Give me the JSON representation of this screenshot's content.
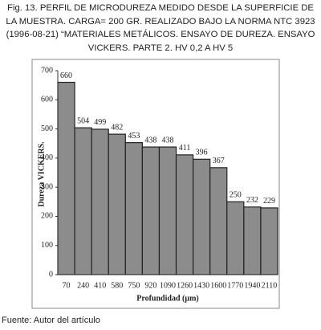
{
  "figure_label": "Fig. 13.",
  "caption": "PERFIL DE MICRODUREZA MEDIDO DESDE LA SUPERFICIE DE LA MUESTRA. CARGA= 200 GR. REALIZADO BAJO LA NORMA NTC 3923 (1996-08-21) “MATERIALES METÁLICOS. ENSAYO DE DUREZA. ENSAYO VICKERS. PARTE 2. HV 0,2 A HV 5",
  "source": "Fuente: Autor del artículo",
  "chart_data": {
    "type": "bar",
    "x_label": "Profundidad (µm)",
    "y_label": "Dureza VICKERS.",
    "categories": [
      "70",
      "240",
      "410",
      "580",
      "750",
      "920",
      "1090",
      "1260",
      "1430",
      "1600",
      "1770",
      "1940",
      "2110"
    ],
    "values": [
      660,
      504,
      499,
      482,
      453,
      438,
      438,
      411,
      396,
      367,
      250,
      232,
      229
    ],
    "color": "#8c8c8c",
    "ylim": [
      0,
      700
    ],
    "yticks": [
      0,
      100,
      200,
      300,
      400,
      500,
      600,
      700
    ]
  }
}
